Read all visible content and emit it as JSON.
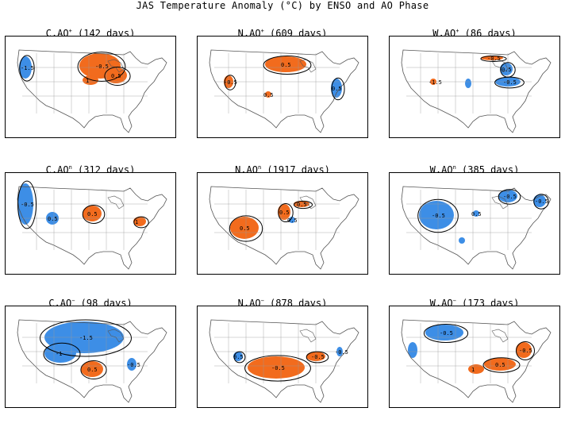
{
  "title": "JAS Temperature Anomaly (°C) by ENSO and AO Phase",
  "colors": {
    "warm": "#f26b1d",
    "cool": "#3d8ee6",
    "contour": "#000000",
    "border": "#555555"
  },
  "panels": [
    {
      "id": "c-ao-pos",
      "enso": "C",
      "ao": "+",
      "days": 142
    },
    {
      "id": "n-ao-pos",
      "enso": "N",
      "ao": "+",
      "days": 609
    },
    {
      "id": "w-ao-pos",
      "enso": "W",
      "ao": "+",
      "days": 86
    },
    {
      "id": "c-ao-neu",
      "enso": "C",
      "ao": "n",
      "days": 312
    },
    {
      "id": "n-ao-neu",
      "enso": "N",
      "ao": "n",
      "days": 1917
    },
    {
      "id": "w-ao-neu",
      "enso": "W",
      "ao": "n",
      "days": 385
    },
    {
      "id": "c-ao-neg",
      "enso": "C",
      "ao": "−",
      "days": 98
    },
    {
      "id": "n-ao-neg",
      "enso": "N",
      "ao": "−",
      "days": 878
    },
    {
      "id": "w-ao-neg",
      "enso": "W",
      "ao": "−",
      "days": 173
    }
  ]
}
